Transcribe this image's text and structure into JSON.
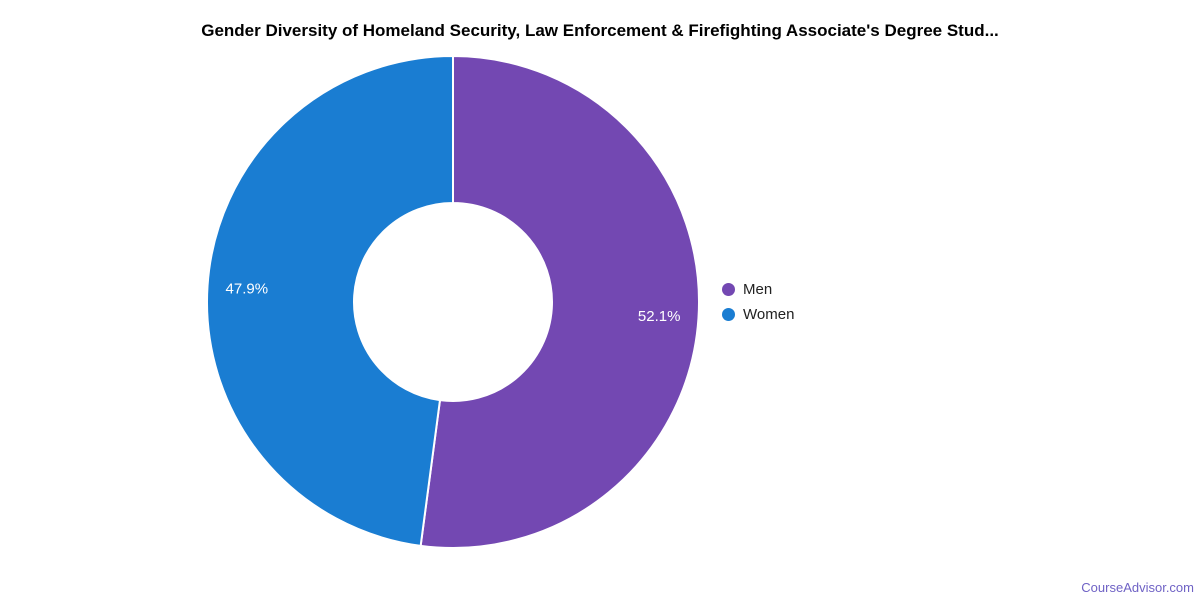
{
  "page": {
    "background": "#ffffff",
    "title_color": "#000000",
    "watermark": {
      "text": "CourseAdvisor.com",
      "color": "#6f62c5"
    }
  },
  "chart_data": {
    "type": "pie",
    "donut": true,
    "title": "Gender Diversity of Homeland Security, Law Enforcement & Firefighting Associate's Degree Stud...",
    "start_at_top_clockwise": true,
    "slices": [
      {
        "label": "Men",
        "value": 52.1,
        "display": "52.1%",
        "color": "#7348b2"
      },
      {
        "label": "Women",
        "value": 47.9,
        "display": "47.9%",
        "color": "#1a7dd2"
      }
    ],
    "label_color": "#ffffff",
    "slice_separator_color": "#ffffff",
    "legend_position": "right"
  }
}
